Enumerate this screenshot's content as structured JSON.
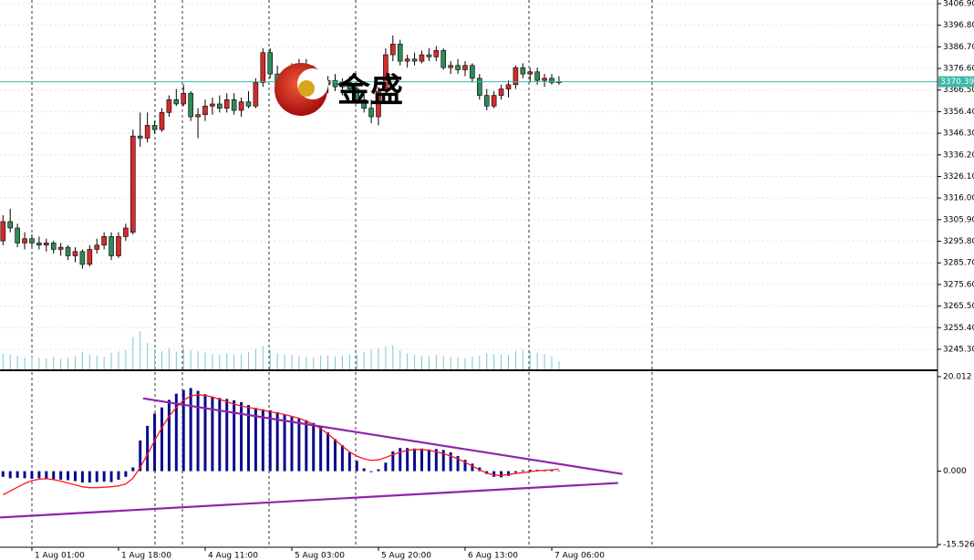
{
  "chart_data": [
    {
      "type": "candlestick",
      "categories": [
        null,
        null,
        null,
        null,
        "1 Aug 01:00",
        null,
        null,
        null,
        null,
        null,
        null,
        null,
        null,
        null,
        null,
        null,
        "1 Aug 18:00",
        null,
        null,
        null,
        null,
        null,
        null,
        null,
        null,
        null,
        null,
        null,
        "4 Aug 11:00",
        null,
        null,
        null,
        null,
        null,
        null,
        null,
        null,
        null,
        null,
        null,
        "5 Aug 03:00",
        null,
        null,
        null,
        null,
        null,
        null,
        null,
        null,
        null,
        null,
        null,
        "5 Aug 20:00",
        null,
        null,
        null,
        null,
        null,
        null,
        null,
        null,
        null,
        null,
        null,
        "6 Aug 13:00",
        null,
        null,
        null,
        null,
        null,
        null,
        null,
        null,
        null,
        null,
        null,
        "7 Aug 06:00",
        null
      ],
      "open": [
        3296,
        3305,
        3302,
        3295,
        3297,
        3295,
        3294,
        3295,
        3292,
        3293,
        3289,
        3291,
        3285,
        3292,
        3294,
        3298,
        3289,
        3298,
        3300,
        3345,
        3344,
        3350,
        3348,
        3356,
        3362,
        3360,
        3365,
        3354,
        3355,
        3359,
        3360,
        3358,
        3362,
        3357,
        3361,
        3359,
        3370,
        3384,
        3374,
        3368,
        3374,
        3376,
        3378,
        3374,
        3372,
        3369,
        3371,
        3368,
        3370,
        3367,
        3362,
        3358,
        3354,
        3366,
        3383,
        3388,
        3380,
        3381,
        3380,
        3383,
        3382,
        3385,
        3377,
        3378,
        3376,
        3378,
        3372,
        3364,
        3359,
        3364,
        3367,
        3369,
        3377,
        3374,
        3375,
        3371,
        3372,
        3370
      ],
      "high": [
        3308,
        3311,
        3304,
        3300,
        3299,
        3298,
        3297,
        3296,
        3295,
        3294,
        3293,
        3292,
        3294,
        3297,
        3300,
        3300,
        3300,
        3304,
        3348,
        3356,
        3356,
        3352,
        3358,
        3364,
        3367,
        3369,
        3366,
        3358,
        3362,
        3363,
        3364,
        3365,
        3365,
        3363,
        3366,
        3372,
        3386,
        3386,
        3378,
        3376,
        3379,
        3381,
        3381,
        3378,
        3375,
        3373,
        3374,
        3372,
        3373,
        3370,
        3366,
        3362,
        3368,
        3386,
        3392,
        3390,
        3383,
        3384,
        3385,
        3386,
        3387,
        3386,
        3380,
        3381,
        3380,
        3379,
        3374,
        3367,
        3366,
        3369,
        3371,
        3378,
        3379,
        3377,
        3377,
        3374,
        3374,
        3373
      ],
      "low": [
        3294,
        3300,
        3293,
        3292,
        3293,
        3292,
        3291,
        3290,
        3289,
        3287,
        3286,
        3283,
        3284,
        3290,
        3292,
        3287,
        3288,
        3296,
        3299,
        3340,
        3342,
        3346,
        3347,
        3354,
        3359,
        3359,
        3352,
        3344,
        3352,
        3355,
        3356,
        3356,
        3355,
        3354,
        3358,
        3358,
        3368,
        3372,
        3366,
        3365,
        3371,
        3373,
        3372,
        3370,
        3367,
        3365,
        3366,
        3364,
        3366,
        3360,
        3356,
        3351,
        3350,
        3364,
        3380,
        3378,
        3377,
        3378,
        3379,
        3380,
        3380,
        3376,
        3374,
        3374,
        3373,
        3370,
        3362,
        3357,
        3358,
        3362,
        3363,
        3367,
        3372,
        3370,
        3369,
        3368,
        3369,
        3369
      ],
      "close": [
        3305,
        3302,
        3295,
        3297,
        3295,
        3294,
        3295,
        3292,
        3293,
        3289,
        3291,
        3285,
        3292,
        3294,
        3298,
        3289,
        3298,
        3302,
        3345,
        3344,
        3350,
        3348,
        3356,
        3362,
        3360,
        3365,
        3354,
        3355,
        3359,
        3360,
        3358,
        3362,
        3357,
        3361,
        3359,
        3370,
        3384,
        3374,
        3368,
        3374,
        3376,
        3378,
        3374,
        3372,
        3369,
        3371,
        3368,
        3370,
        3367,
        3362,
        3358,
        3354,
        3366,
        3383,
        3388,
        3380,
        3381,
        3380,
        3383,
        3382,
        3385,
        3377,
        3378,
        3376,
        3378,
        3372,
        3364,
        3359,
        3364,
        3367,
        3369,
        3377,
        3374,
        3375,
        3371,
        3372,
        3370,
        3370.39
      ],
      "volume": [
        5200,
        4800,
        4300,
        3900,
        4100,
        3800,
        3600,
        4000,
        3500,
        3700,
        4200,
        5600,
        4900,
        4400,
        4100,
        5300,
        5800,
        6200,
        10500,
        12400,
        8600,
        6400,
        5900,
        6800,
        5700,
        7100,
        6300,
        5900,
        5400,
        5000,
        4600,
        5200,
        4700,
        4900,
        5500,
        6700,
        7600,
        6200,
        5300,
        4800,
        4600,
        4300,
        4100,
        3900,
        4400,
        4600,
        4200,
        4500,
        4800,
        5100,
        5700,
        6400,
        6900,
        7400,
        7800,
        6300,
        5200,
        4700,
        4400,
        4200,
        4600,
        4300,
        4000,
        3900,
        3700,
        4100,
        4500,
        5300,
        5000,
        4800,
        4600,
        6000,
        6400,
        5800,
        5400,
        4900,
        4200,
        2600
      ],
      "color_up": "#d42b2b",
      "color_down": "#2e8b57",
      "volume_color": "#79c7c7",
      "last_color": "#3cb8a8",
      "ylim": [
        3235.9,
        3408.6
      ],
      "yticks": [
        {
          "value": 3406.9,
          "label": "3406.90"
        },
        {
          "value": 3396.8,
          "label": "3396.80"
        },
        {
          "value": 3386.7,
          "label": "3386.70"
        },
        {
          "value": 3376.6,
          "label": "3376.60"
        },
        {
          "value": 3366.5,
          "label": "3366.50"
        },
        {
          "value": 3356.4,
          "label": "3356.40"
        },
        {
          "value": 3346.3,
          "label": "3346.30"
        },
        {
          "value": 3336.2,
          "label": "3336.20"
        },
        {
          "value": 3326.1,
          "label": "3326.10"
        },
        {
          "value": 3316,
          "label": "3316.00"
        },
        {
          "value": 3305.9,
          "label": "3305.90"
        },
        {
          "value": 3295.8,
          "label": "3295.80"
        },
        {
          "value": 3285.7,
          "label": "3285.70"
        },
        {
          "value": 3275.6,
          "label": "3275.60"
        },
        {
          "value": 3265.5,
          "label": "3265.50"
        },
        {
          "value": 3255.4,
          "label": "3255.40"
        },
        {
          "value": 3245.3,
          "label": "3245.30"
        }
      ],
      "grid": true,
      "watermark": "金盛"
    },
    {
      "type": "macd",
      "histogram": {
        "color": "#0a0a8a",
        "values": [
          -1.2,
          -1.5,
          -1.4,
          -1.5,
          -1.6,
          -1.5,
          -1.6,
          -1.7,
          -1.8,
          -1.9,
          -2.1,
          -2.4,
          -2.4,
          -2.3,
          -2.2,
          -2.3,
          -1.8,
          -1.2,
          0.8,
          6.5,
          9.6,
          12.2,
          13.5,
          15.1,
          16.4,
          17.2,
          17.6,
          17.0,
          16.3,
          15.8,
          15.5,
          15.3,
          15.0,
          14.6,
          14.0,
          13.4,
          13.1,
          12.9,
          12.5,
          12.0,
          11.5,
          11.2,
          10.8,
          10.2,
          9.5,
          8.2,
          6.8,
          5.5,
          4.0,
          2.2,
          0.6,
          -0.2,
          0.4,
          1.8,
          4.2,
          4.9,
          4.9,
          4.8,
          4.8,
          4.6,
          4.7,
          4.5,
          4.0,
          3.2,
          2.4,
          1.6,
          0.8,
          -0.6,
          -1.2,
          -1.3,
          -1.0,
          -0.3,
          0.2,
          0.3,
          0.3,
          0.2,
          0.2,
          0.1
        ]
      },
      "signal": {
        "color": "#ff1a1a",
        "values": [
          -5.0,
          -4.2,
          -3.4,
          -2.6,
          -2.0,
          -1.7,
          -1.6,
          -1.8,
          -2.1,
          -2.5,
          -2.9,
          -3.3,
          -3.5,
          -3.5,
          -3.4,
          -3.3,
          -3.1,
          -2.7,
          -1.5,
          0.8,
          3.5,
          6.5,
          9.2,
          11.6,
          13.5,
          15.0,
          15.9,
          16.2,
          16.0,
          15.7,
          15.2,
          14.7,
          14.2,
          13.8,
          13.5,
          13.2,
          12.9,
          12.6,
          12.3,
          12.0,
          11.6,
          11.2,
          10.6,
          9.9,
          9.0,
          7.9,
          6.6,
          5.3,
          4.1,
          3.2,
          2.6,
          2.3,
          2.4,
          2.9,
          3.5,
          4.0,
          4.4,
          4.6,
          4.6,
          4.4,
          4.1,
          3.7,
          3.2,
          2.6,
          1.9,
          1.1,
          0.3,
          -0.4,
          -0.8,
          -0.9,
          -0.7,
          -0.5,
          -0.3,
          -0.1,
          0.1,
          0.2,
          0.3,
          0.4
        ]
      },
      "trendlines": [
        {
          "color": "#8e24aa",
          "x": [
            19.4,
            85.8
          ],
          "y": [
            15.4,
            -0.6
          ]
        },
        {
          "color": "#8e24aa",
          "x": [
            -0.4,
            85.2
          ],
          "y": [
            -9.8,
            -2.5
          ]
        }
      ],
      "ylim": [
        -16.1,
        20.97
      ],
      "yticks": [
        20.012,
        {
          "value": 0,
          "label": "0.000"
        },
        -15.526
      ]
    }
  ]
}
